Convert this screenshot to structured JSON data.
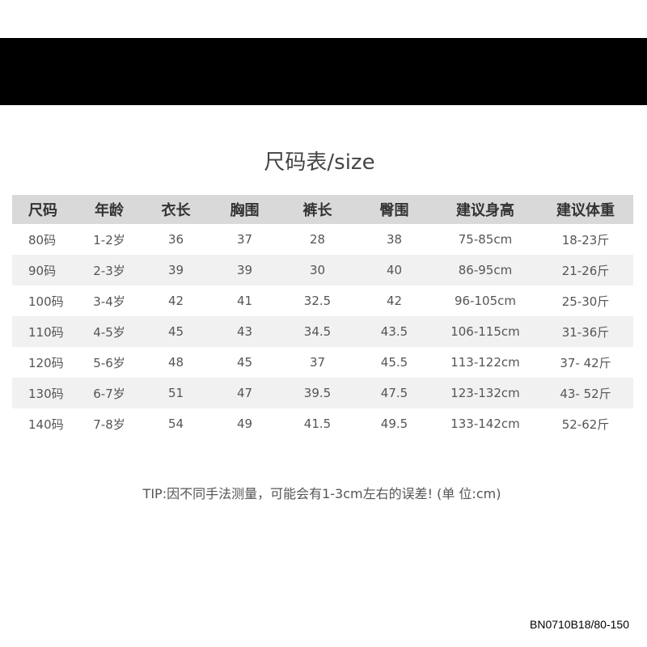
{
  "title": "尺码表/size",
  "table": {
    "headers": [
      "尺码",
      "年龄",
      "衣长",
      "胸围",
      "裤长",
      "臀围",
      "建议身高",
      "建议体重"
    ],
    "rows": [
      [
        "80码",
        "1-2岁",
        "36",
        "37",
        "28",
        "38",
        "75-85cm",
        "18-23斤"
      ],
      [
        "90码",
        "2-3岁",
        "39",
        "39",
        "30",
        "40",
        "86-95cm",
        "21-26斤"
      ],
      [
        "100码",
        "3-4岁",
        "42",
        "41",
        "32.5",
        "42",
        "96-105cm",
        "25-30斤"
      ],
      [
        "110码",
        "4-5岁",
        "45",
        "43",
        "34.5",
        "43.5",
        "106-115cm",
        "31-36斤"
      ],
      [
        "120码",
        "5-6岁",
        "48",
        "45",
        "37",
        "45.5",
        "113-122cm",
        "37- 42斤"
      ],
      [
        "130码",
        "6-7岁",
        "51",
        "47",
        "39.5",
        "47.5",
        "123-132cm",
        "43- 52斤"
      ],
      [
        "140码",
        "7-8岁",
        "54",
        "49",
        "41.5",
        "49.5",
        "133-142cm",
        "52-62斤"
      ]
    ]
  },
  "tip": "TIP:因不同手法测量，可能会有1-3cm左右的误差! (单 位:cm)",
  "product_code": "BN0710B18/80-150",
  "colors": {
    "band": "#000000",
    "header_bg": "#d9d9d9",
    "alt_row_bg": "#f1f1f1"
  }
}
